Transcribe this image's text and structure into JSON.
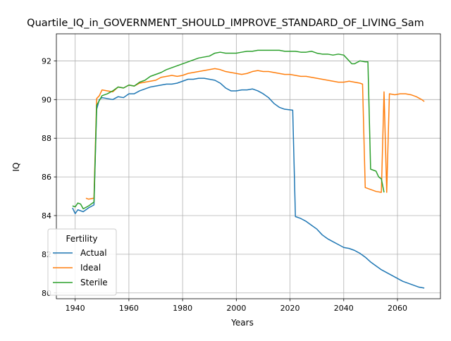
{
  "chart_data": {
    "type": "line",
    "title": "Quartile_IQ_in_GOVERNMENT_SHOULD_IMPROVE_STANDARD_OF_LIVING_Sam",
    "xlabel": "Years",
    "ylabel": "IQ",
    "xlim": [
      1933,
      2076
    ],
    "ylim": [
      79.7,
      93.4
    ],
    "xticks": [
      1940,
      1960,
      1980,
      2000,
      2020,
      2040,
      2060
    ],
    "yticks": [
      80,
      82,
      84,
      86,
      88,
      90,
      92
    ],
    "grid": true,
    "legend": {
      "title": "Fertility",
      "placement": "lower-left"
    },
    "series": [
      {
        "name": "Actual",
        "color": "#1f77b4",
        "points": [
          [
            1939,
            84.4
          ],
          [
            1940,
            84.1
          ],
          [
            1941,
            84.3
          ],
          [
            1943,
            84.2
          ],
          [
            1945,
            84.4
          ],
          [
            1947,
            84.55
          ],
          [
            1948,
            89.5
          ],
          [
            1949,
            90.0
          ],
          [
            1950,
            90.1
          ],
          [
            1952,
            90.05
          ],
          [
            1954,
            90.0
          ],
          [
            1956,
            90.15
          ],
          [
            1958,
            90.1
          ],
          [
            1960,
            90.3
          ],
          [
            1962,
            90.3
          ],
          [
            1964,
            90.45
          ],
          [
            1966,
            90.55
          ],
          [
            1968,
            90.65
          ],
          [
            1970,
            90.7
          ],
          [
            1972,
            90.75
          ],
          [
            1974,
            90.8
          ],
          [
            1976,
            90.8
          ],
          [
            1978,
            90.85
          ],
          [
            1980,
            90.95
          ],
          [
            1982,
            91.05
          ],
          [
            1984,
            91.05
          ],
          [
            1986,
            91.1
          ],
          [
            1988,
            91.1
          ],
          [
            1990,
            91.05
          ],
          [
            1992,
            91.0
          ],
          [
            1994,
            90.85
          ],
          [
            1996,
            90.6
          ],
          [
            1998,
            90.45
          ],
          [
            2000,
            90.45
          ],
          [
            2002,
            90.5
          ],
          [
            2004,
            90.5
          ],
          [
            2006,
            90.55
          ],
          [
            2008,
            90.45
          ],
          [
            2010,
            90.3
          ],
          [
            2012,
            90.1
          ],
          [
            2014,
            89.8
          ],
          [
            2016,
            89.6
          ],
          [
            2018,
            89.5
          ],
          [
            2021,
            89.45
          ],
          [
            2022,
            83.95
          ],
          [
            2024,
            83.85
          ],
          [
            2026,
            83.7
          ],
          [
            2028,
            83.5
          ],
          [
            2030,
            83.3
          ],
          [
            2032,
            83.0
          ],
          [
            2034,
            82.8
          ],
          [
            2036,
            82.65
          ],
          [
            2038,
            82.5
          ],
          [
            2040,
            82.35
          ],
          [
            2042,
            82.3
          ],
          [
            2044,
            82.2
          ],
          [
            2046,
            82.05
          ],
          [
            2048,
            81.85
          ],
          [
            2050,
            81.6
          ],
          [
            2052,
            81.4
          ],
          [
            2054,
            81.2
          ],
          [
            2056,
            81.05
          ],
          [
            2058,
            80.9
          ],
          [
            2060,
            80.75
          ],
          [
            2062,
            80.6
          ],
          [
            2064,
            80.5
          ],
          [
            2066,
            80.4
          ],
          [
            2068,
            80.3
          ],
          [
            2070,
            80.25
          ]
        ]
      },
      {
        "name": "Ideal",
        "color": "#ff7f0e",
        "points": [
          [
            1944,
            84.9
          ],
          [
            1945,
            84.85
          ],
          [
            1947,
            84.9
          ],
          [
            1948,
            90.05
          ],
          [
            1949,
            90.2
          ],
          [
            1950,
            90.5
          ],
          [
            1952,
            90.45
          ],
          [
            1954,
            90.4
          ],
          [
            1956,
            90.65
          ],
          [
            1958,
            90.6
          ],
          [
            1960,
            90.75
          ],
          [
            1962,
            90.7
          ],
          [
            1964,
            90.85
          ],
          [
            1966,
            90.9
          ],
          [
            1968,
            90.95
          ],
          [
            1970,
            91.0
          ],
          [
            1972,
            91.15
          ],
          [
            1974,
            91.2
          ],
          [
            1976,
            91.25
          ],
          [
            1978,
            91.2
          ],
          [
            1980,
            91.25
          ],
          [
            1982,
            91.35
          ],
          [
            1984,
            91.4
          ],
          [
            1986,
            91.45
          ],
          [
            1988,
            91.5
          ],
          [
            1990,
            91.55
          ],
          [
            1992,
            91.6
          ],
          [
            1994,
            91.55
          ],
          [
            1996,
            91.45
          ],
          [
            1998,
            91.4
          ],
          [
            2000,
            91.35
          ],
          [
            2002,
            91.3
          ],
          [
            2004,
            91.35
          ],
          [
            2006,
            91.45
          ],
          [
            2008,
            91.5
          ],
          [
            2010,
            91.45
          ],
          [
            2012,
            91.45
          ],
          [
            2014,
            91.4
          ],
          [
            2016,
            91.35
          ],
          [
            2018,
            91.3
          ],
          [
            2020,
            91.3
          ],
          [
            2022,
            91.25
          ],
          [
            2024,
            91.2
          ],
          [
            2026,
            91.2
          ],
          [
            2028,
            91.15
          ],
          [
            2030,
            91.1
          ],
          [
            2032,
            91.05
          ],
          [
            2034,
            91.0
          ],
          [
            2036,
            90.95
          ],
          [
            2038,
            90.9
          ],
          [
            2040,
            90.9
          ],
          [
            2042,
            90.95
          ],
          [
            2044,
            90.9
          ],
          [
            2046,
            90.85
          ],
          [
            2047,
            90.8
          ],
          [
            2048,
            85.45
          ],
          [
            2050,
            85.35
          ],
          [
            2052,
            85.25
          ],
          [
            2054,
            85.2
          ],
          [
            2055,
            90.4
          ],
          [
            2056,
            85.2
          ],
          [
            2057,
            90.3
          ],
          [
            2059,
            90.25
          ],
          [
            2061,
            90.3
          ],
          [
            2063,
            90.3
          ],
          [
            2065,
            90.25
          ],
          [
            2067,
            90.15
          ],
          [
            2069,
            90.0
          ],
          [
            2070,
            89.9
          ]
        ]
      },
      {
        "name": "Sterile",
        "color": "#2ca02c",
        "points": [
          [
            1939,
            84.5
          ],
          [
            1940,
            84.45
          ],
          [
            1941,
            84.65
          ],
          [
            1942,
            84.6
          ],
          [
            1943,
            84.35
          ],
          [
            1945,
            84.5
          ],
          [
            1947,
            84.7
          ],
          [
            1948,
            89.7
          ],
          [
            1949,
            89.95
          ],
          [
            1950,
            90.2
          ],
          [
            1952,
            90.3
          ],
          [
            1954,
            90.45
          ],
          [
            1956,
            90.65
          ],
          [
            1958,
            90.6
          ],
          [
            1960,
            90.75
          ],
          [
            1962,
            90.7
          ],
          [
            1964,
            90.9
          ],
          [
            1966,
            91.0
          ],
          [
            1968,
            91.2
          ],
          [
            1970,
            91.3
          ],
          [
            1972,
            91.4
          ],
          [
            1974,
            91.55
          ],
          [
            1976,
            91.65
          ],
          [
            1978,
            91.75
          ],
          [
            1980,
            91.85
          ],
          [
            1982,
            91.95
          ],
          [
            1984,
            92.05
          ],
          [
            1986,
            92.15
          ],
          [
            1988,
            92.2
          ],
          [
            1990,
            92.25
          ],
          [
            1992,
            92.4
          ],
          [
            1994,
            92.45
          ],
          [
            1996,
            92.4
          ],
          [
            1998,
            92.4
          ],
          [
            2000,
            92.4
          ],
          [
            2002,
            92.45
          ],
          [
            2004,
            92.5
          ],
          [
            2006,
            92.5
          ],
          [
            2008,
            92.55
          ],
          [
            2010,
            92.55
          ],
          [
            2012,
            92.55
          ],
          [
            2014,
            92.55
          ],
          [
            2016,
            92.55
          ],
          [
            2018,
            92.5
          ],
          [
            2020,
            92.5
          ],
          [
            2022,
            92.5
          ],
          [
            2024,
            92.45
          ],
          [
            2026,
            92.45
          ],
          [
            2028,
            92.5
          ],
          [
            2030,
            92.4
          ],
          [
            2032,
            92.35
          ],
          [
            2034,
            92.35
          ],
          [
            2036,
            92.3
          ],
          [
            2038,
            92.35
          ],
          [
            2040,
            92.3
          ],
          [
            2042,
            92.0
          ],
          [
            2043,
            91.85
          ],
          [
            2044,
            91.85
          ],
          [
            2046,
            92.0
          ],
          [
            2048,
            91.95
          ],
          [
            2049,
            91.95
          ],
          [
            2050,
            86.4
          ],
          [
            2052,
            86.3
          ],
          [
            2053,
            86.0
          ],
          [
            2054,
            85.9
          ],
          [
            2055,
            85.2
          ]
        ]
      }
    ]
  }
}
